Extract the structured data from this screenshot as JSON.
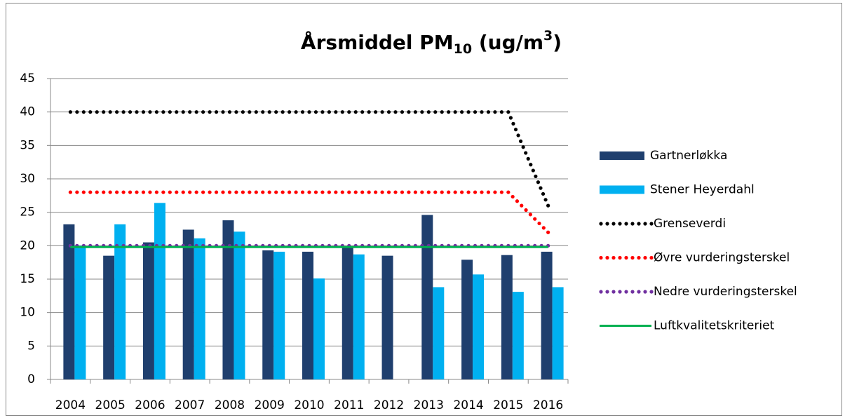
{
  "chart_data": {
    "type": "bar",
    "title": [
      {
        "text": "Årsmiddel PM",
        "style": "normal"
      },
      {
        "text": "10",
        "style": "sub"
      },
      {
        "text": " (ug/m",
        "style": "normal"
      },
      {
        "text": "3",
        "style": "sup"
      },
      {
        "text": ")",
        "style": "normal"
      }
    ],
    "categories": [
      "2004",
      "2005",
      "2006",
      "2007",
      "2008",
      "2009",
      "2010",
      "2011",
      "2012",
      "2013",
      "2014",
      "2015",
      "2016"
    ],
    "series": [
      {
        "name": "Gartnerløkka",
        "type": "bar",
        "color": "#1f3f6e",
        "values": [
          23.2,
          18.5,
          20.5,
          22.4,
          23.8,
          19.3,
          19.1,
          19.8,
          18.5,
          24.6,
          17.9,
          18.6,
          19.1
        ]
      },
      {
        "name": "Stener Heyerdahl",
        "type": "bar",
        "color": "#00b0f0",
        "values": [
          20.0,
          23.2,
          26.4,
          21.1,
          22.1,
          19.1,
          15.1,
          18.7,
          null,
          13.8,
          15.7,
          13.1,
          13.8
        ]
      },
      {
        "name": "Grenseverdi",
        "type": "line",
        "style": "dotted",
        "color": "#000000",
        "values": [
          40,
          40,
          40,
          40,
          40,
          40,
          40,
          40,
          40,
          40,
          40,
          40,
          26
        ]
      },
      {
        "name": "Øvre vurderingsterskel",
        "type": "line",
        "style": "dotted",
        "color": "#ff0000",
        "values": [
          28,
          28,
          28,
          28,
          28,
          28,
          28,
          28,
          28,
          28,
          28,
          28,
          22
        ]
      },
      {
        "name": "Nedre vurderingsterskel",
        "type": "line",
        "style": "dotted",
        "color": "#7030a0",
        "values": [
          20,
          20,
          20,
          20,
          20,
          20,
          20,
          20,
          20,
          20,
          20,
          20,
          20
        ]
      },
      {
        "name": "Luftkvalitetskriteriet",
        "type": "line",
        "style": "solid",
        "color": "#00b050",
        "values": [
          19.8,
          19.8,
          19.8,
          19.8,
          19.8,
          19.8,
          19.8,
          19.8,
          19.8,
          19.8,
          19.8,
          19.8,
          19.8
        ]
      }
    ],
    "ylim": [
      0,
      45
    ],
    "yticks": [
      0,
      5,
      10,
      15,
      20,
      25,
      30,
      35,
      40,
      45
    ],
    "grid": true,
    "legend": "right"
  }
}
